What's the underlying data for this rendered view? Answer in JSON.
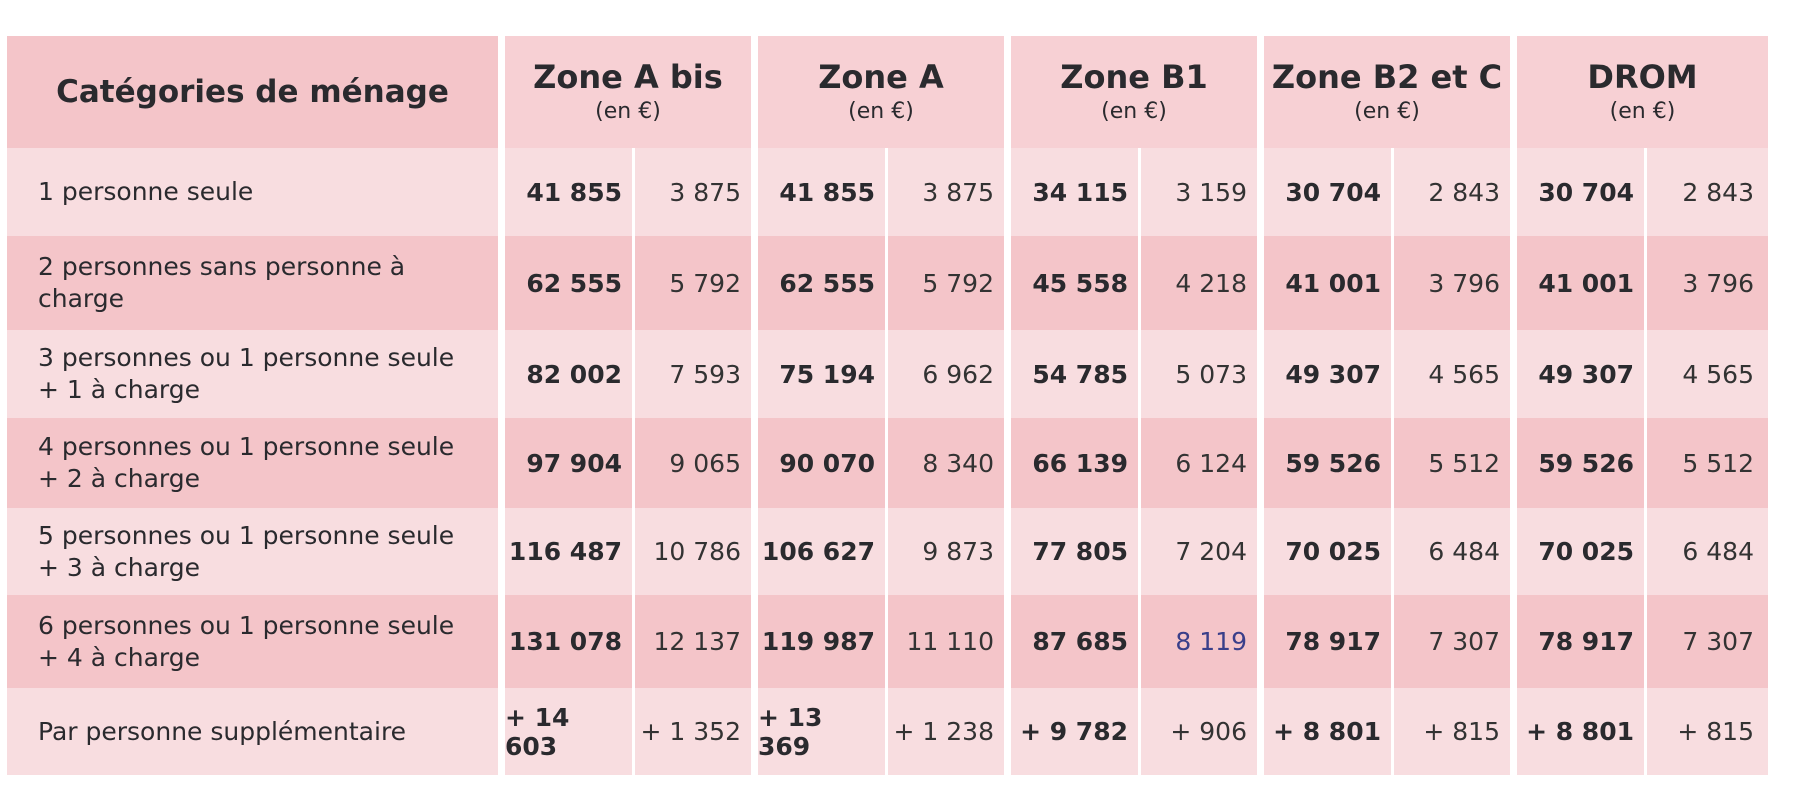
{
  "header": {
    "category_label": "Catégories de ménage",
    "zones": [
      {
        "name": "Zone A bis",
        "unit": "(en €)"
      },
      {
        "name": "Zone A",
        "unit": "(en €)"
      },
      {
        "name": "Zone B1",
        "unit": "(en €)"
      },
      {
        "name": "Zone B2 et C",
        "unit": "(en €)"
      },
      {
        "name": "DROM",
        "unit": "(en €)"
      }
    ]
  },
  "rows": [
    {
      "label": "1 personne seule",
      "values": [
        [
          "41 855",
          "3 875"
        ],
        [
          "41 855",
          "3 875"
        ],
        [
          "34 115",
          "3 159"
        ],
        [
          "30 704",
          "2 843"
        ],
        [
          "30 704",
          "2 843"
        ]
      ]
    },
    {
      "label": "2 personnes sans personne à charge",
      "values": [
        [
          "62 555",
          "5 792"
        ],
        [
          "62 555",
          "5 792"
        ],
        [
          "45 558",
          "4 218"
        ],
        [
          "41 001",
          "3 796"
        ],
        [
          "41 001",
          "3 796"
        ]
      ]
    },
    {
      "label": "3 personnes ou 1 personne seule\n+ 1 à charge",
      "values": [
        [
          "82 002",
          "7 593"
        ],
        [
          "75 194",
          "6 962"
        ],
        [
          "54 785",
          "5 073"
        ],
        [
          "49 307",
          "4 565"
        ],
        [
          "49 307",
          "4 565"
        ]
      ]
    },
    {
      "label": "4 personnes ou 1 personne seule\n+ 2 à charge",
      "values": [
        [
          "97 904",
          "9 065"
        ],
        [
          "90 070",
          "8 340"
        ],
        [
          "66 139",
          "6 124"
        ],
        [
          "59 526",
          "5 512"
        ],
        [
          "59 526",
          "5 512"
        ]
      ]
    },
    {
      "label": "5 personnes ou 1 personne seule\n+ 3 à charge",
      "values": [
        [
          "116 487",
          "10 786"
        ],
        [
          "106 627",
          "9 873"
        ],
        [
          "77 805",
          "7 204"
        ],
        [
          "70 025",
          "6 484"
        ],
        [
          "70 025",
          "6 484"
        ]
      ]
    },
    {
      "label": "6 personnes ou 1 personne seule\n+ 4 à charge",
      "values": [
        [
          "131 078",
          "12 137"
        ],
        [
          "119 987",
          "11 110"
        ],
        [
          "87 685",
          "8 119"
        ],
        [
          "78 917",
          "7 307"
        ],
        [
          "78 917",
          "7 307"
        ]
      ]
    },
    {
      "label": "Par personne supplémentaire",
      "values": [
        [
          "+ 14 603",
          "+ 1 352"
        ],
        [
          "+ 13 369",
          "+ 1 238"
        ],
        [
          "+ 9 782",
          "+ 906"
        ],
        [
          "+ 8 801",
          "+ 815"
        ],
        [
          "+ 8 801",
          "+ 815"
        ]
      ]
    }
  ],
  "colors": {
    "header_category_bg": "#f4c5c9",
    "header_zone_bg": "#f7d0d4",
    "row_light_bg": "#f8dde0",
    "row_dark_bg": "#f4c5c9",
    "text": "#2a2a2e",
    "highlight_value": "#3a3f8a"
  }
}
